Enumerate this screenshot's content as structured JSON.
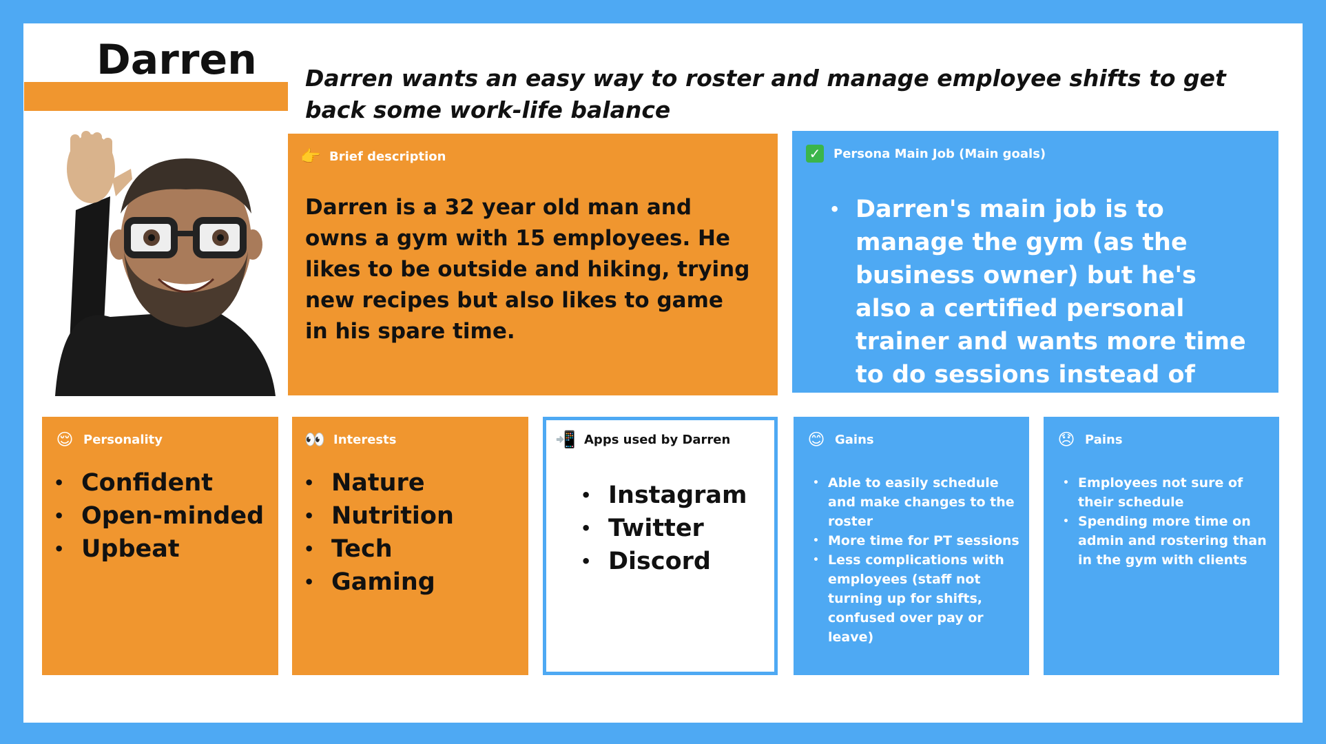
{
  "persona": {
    "name": "Darren",
    "tagline": "Darren wants an easy way to roster and manage employee shifts to get back some work-life balance"
  },
  "colors": {
    "orange": "#f0962f",
    "blue": "#4ea9f3"
  },
  "brief": {
    "icon": "pointing-hand-icon",
    "title": "Brief description",
    "text": "Darren is a 32 year old man and owns a gym with 15 employees. He likes to be outside and hiking, trying new recipes but also likes to game in his spare time."
  },
  "main_job": {
    "icon": "check-mark-icon",
    "title": "Persona Main Job (Main goals)",
    "items": [
      "Darren's main job is to manage the gym (as the business owner) but he's also a certified personal trainer and wants more time to do sessions instead of business admin"
    ]
  },
  "personality": {
    "icon": "relieved-face-icon",
    "title": "Personality",
    "items": [
      "Confident",
      "Open-minded",
      "Upbeat"
    ]
  },
  "interests": {
    "icon": "eyes-icon",
    "title": "Interests",
    "items": [
      "Nature",
      "Nutrition",
      "Tech",
      "Gaming"
    ]
  },
  "apps": {
    "icon": "mobile-phone-arrow-icon",
    "title": "Apps used by Darren",
    "items": [
      "Instagram",
      "Twitter",
      "Discord"
    ]
  },
  "gains": {
    "icon": "smiling-face-icon",
    "title": "Gains",
    "items": [
      "Able to easily schedule and make changes to the roster",
      "More time for PT sessions",
      "Less complications with employees (staff not turning up for shifts, confused over pay or leave)"
    ]
  },
  "pains": {
    "icon": "disappointed-face-icon",
    "title": "Pains",
    "items": [
      "Employees not sure of their schedule",
      "Spending more time on admin and rostering than in the gym with clients"
    ]
  }
}
